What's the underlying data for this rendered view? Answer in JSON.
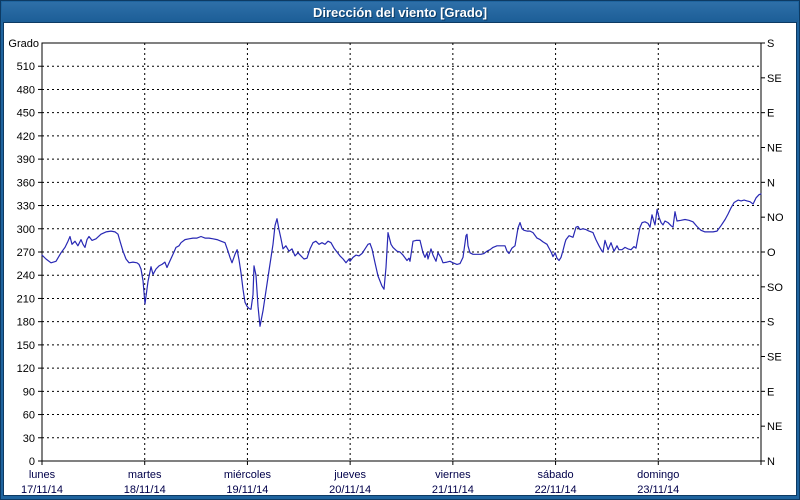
{
  "window": {
    "title": "Dirección del viento [Grado]"
  },
  "colors": {
    "titlebar": "#1f649e",
    "frame": "#1f649e",
    "series": "#2828b4",
    "grid": "#000000",
    "axis": "#000000",
    "tick_label": "#000000",
    "date_label": "#00004a",
    "plot_bg": "#ffffff"
  },
  "chart_data": {
    "type": "line",
    "title": "Dirección del viento [Grado]",
    "grid": {
      "style": "dashed",
      "h_step_deg": 30,
      "v_step_days": 1
    },
    "legend": "none",
    "y_left": {
      "title": "Grado",
      "min": 0,
      "max": 540,
      "tick_step": 30,
      "tick_labels": [
        0,
        30,
        60,
        90,
        120,
        150,
        180,
        210,
        240,
        270,
        300,
        330,
        360,
        390,
        420,
        450,
        480,
        510
      ]
    },
    "y_right": {
      "tick_step": 45,
      "ticks": [
        {
          "value": 0,
          "label": "N"
        },
        {
          "value": 45,
          "label": "NE"
        },
        {
          "value": 90,
          "label": "E"
        },
        {
          "value": 135,
          "label": "SE"
        },
        {
          "value": 180,
          "label": "S"
        },
        {
          "value": 225,
          "label": "SO"
        },
        {
          "value": 270,
          "label": "O"
        },
        {
          "value": 315,
          "label": "NO"
        },
        {
          "value": 360,
          "label": "N"
        },
        {
          "value": 405,
          "label": "NE"
        },
        {
          "value": 450,
          "label": "E"
        },
        {
          "value": 495,
          "label": "SE"
        },
        {
          "value": 540,
          "label": "S"
        }
      ]
    },
    "x_axis": {
      "unit": "days",
      "range_days": 7,
      "days": [
        {
          "name": "lunes",
          "date": "17/11/14"
        },
        {
          "name": "martes",
          "date": "18/11/14"
        },
        {
          "name": "miércoles",
          "date": "19/11/14"
        },
        {
          "name": "jueves",
          "date": "20/11/14"
        },
        {
          "name": "viernes",
          "date": "21/11/14"
        },
        {
          "name": "sábado",
          "date": "22/11/14"
        },
        {
          "name": "domingo",
          "date": "23/11/14"
        }
      ],
      "right_end_label": "N"
    },
    "series": [
      {
        "name": "Dirección del viento",
        "unit": "Grado",
        "points": [
          [
            0,
            266
          ],
          [
            0.039,
            261
          ],
          [
            0.088,
            256
          ],
          [
            0.136,
            258
          ],
          [
            0.185,
            269
          ],
          [
            0.224,
            276
          ],
          [
            0.253,
            284
          ],
          [
            0.273,
            290
          ],
          [
            0.292,
            280
          ],
          [
            0.321,
            284
          ],
          [
            0.35,
            278
          ],
          [
            0.38,
            286
          ],
          [
            0.399,
            280
          ],
          [
            0.419,
            276
          ],
          [
            0.438,
            286
          ],
          [
            0.458,
            290
          ],
          [
            0.487,
            285
          ],
          [
            0.526,
            287
          ],
          [
            0.574,
            293
          ],
          [
            0.623,
            296
          ],
          [
            0.672,
            297
          ],
          [
            0.711,
            296
          ],
          [
            0.74,
            293
          ],
          [
            0.759,
            284
          ],
          [
            0.789,
            271
          ],
          [
            0.818,
            261
          ],
          [
            0.847,
            256
          ],
          [
            0.886,
            257
          ],
          [
            0.925,
            256
          ],
          [
            0.944,
            254
          ],
          [
            0.964,
            248
          ],
          [
            0.983,
            233
          ],
          [
            1.003,
            203
          ],
          [
            1.032,
            232
          ],
          [
            1.061,
            251
          ],
          [
            1.081,
            241
          ],
          [
            1.11,
            248
          ],
          [
            1.139,
            252
          ],
          [
            1.168,
            254
          ],
          [
            1.197,
            257
          ],
          [
            1.217,
            250
          ],
          [
            1.237,
            256
          ],
          [
            1.275,
            267
          ],
          [
            1.305,
            276
          ],
          [
            1.334,
            278
          ],
          [
            1.353,
            282
          ],
          [
            1.392,
            286
          ],
          [
            1.431,
            287
          ],
          [
            1.47,
            288
          ],
          [
            1.509,
            288
          ],
          [
            1.548,
            290
          ],
          [
            1.587,
            288
          ],
          [
            1.626,
            288
          ],
          [
            1.665,
            287
          ],
          [
            1.704,
            286
          ],
          [
            1.743,
            284
          ],
          [
            1.782,
            282
          ],
          [
            1.811,
            271
          ],
          [
            1.83,
            263
          ],
          [
            1.85,
            256
          ],
          [
            1.879,
            267
          ],
          [
            1.899,
            273
          ],
          [
            1.918,
            260
          ],
          [
            1.937,
            243
          ],
          [
            1.957,
            222
          ],
          [
            1.976,
            205
          ],
          [
            1.996,
            200
          ],
          [
            2.015,
            197
          ],
          [
            2.035,
            196
          ],
          [
            2.054,
            215
          ],
          [
            2.064,
            252
          ],
          [
            2.083,
            240
          ],
          [
            2.103,
            200
          ],
          [
            2.122,
            174
          ],
          [
            2.152,
            194
          ],
          [
            2.181,
            220
          ],
          [
            2.21,
            246
          ],
          [
            2.249,
            280
          ],
          [
            2.268,
            304
          ],
          [
            2.288,
            313
          ],
          [
            2.307,
            299
          ],
          [
            2.327,
            287
          ],
          [
            2.346,
            274
          ],
          [
            2.375,
            278
          ],
          [
            2.405,
            271
          ],
          [
            2.434,
            274
          ],
          [
            2.463,
            265
          ],
          [
            2.492,
            269
          ],
          [
            2.522,
            265
          ],
          [
            2.551,
            261
          ],
          [
            2.58,
            262
          ],
          [
            2.609,
            274
          ],
          [
            2.638,
            282
          ],
          [
            2.667,
            284
          ],
          [
            2.697,
            280
          ],
          [
            2.726,
            282
          ],
          [
            2.755,
            280
          ],
          [
            2.784,
            284
          ],
          [
            2.814,
            282
          ],
          [
            2.843,
            275
          ],
          [
            2.872,
            270
          ],
          [
            2.901,
            265
          ],
          [
            2.931,
            261
          ],
          [
            2.96,
            256
          ],
          [
            2.989,
            261
          ],
          [
            2.999,
            258
          ],
          [
            3.028,
            263
          ],
          [
            3.057,
            266
          ],
          [
            3.086,
            265
          ],
          [
            3.115,
            268
          ],
          [
            3.145,
            274
          ],
          [
            3.174,
            280
          ],
          [
            3.193,
            281
          ],
          [
            3.213,
            274
          ],
          [
            3.242,
            256
          ],
          [
            3.271,
            239
          ],
          [
            3.31,
            226
          ],
          [
            3.33,
            222
          ],
          [
            3.349,
            250
          ],
          [
            3.369,
            295
          ],
          [
            3.398,
            280
          ],
          [
            3.417,
            276
          ],
          [
            3.456,
            271
          ],
          [
            3.485,
            270
          ],
          [
            3.515,
            266
          ],
          [
            3.554,
            259
          ],
          [
            3.573,
            262
          ],
          [
            3.583,
            258
          ],
          [
            3.612,
            284
          ],
          [
            3.641,
            285
          ],
          [
            3.68,
            285
          ],
          [
            3.709,
            269
          ],
          [
            3.729,
            263
          ],
          [
            3.748,
            269
          ],
          [
            3.758,
            261
          ],
          [
            3.787,
            274
          ],
          [
            3.807,
            266
          ],
          [
            3.836,
            258
          ],
          [
            3.855,
            269
          ],
          [
            3.884,
            263
          ],
          [
            3.904,
            256
          ],
          [
            3.943,
            257
          ],
          [
            3.972,
            258
          ],
          [
            4.001,
            256
          ],
          [
            4.04,
            254
          ],
          [
            4.07,
            255
          ],
          [
            4.099,
            263
          ],
          [
            4.128,
            291
          ],
          [
            4.138,
            293
          ],
          [
            4.147,
            278
          ],
          [
            4.167,
            269
          ],
          [
            4.196,
            267
          ],
          [
            4.235,
            267
          ],
          [
            4.274,
            267
          ],
          [
            4.303,
            268
          ],
          [
            4.332,
            271
          ],
          [
            4.362,
            273
          ],
          [
            4.391,
            276
          ],
          [
            4.43,
            278
          ],
          [
            4.469,
            278
          ],
          [
            4.508,
            278
          ],
          [
            4.527,
            271
          ],
          [
            4.547,
            268
          ],
          [
            4.576,
            275
          ],
          [
            4.605,
            278
          ],
          [
            4.634,
            301
          ],
          [
            4.654,
            308
          ],
          [
            4.673,
            300
          ],
          [
            4.693,
            298
          ],
          [
            4.722,
            297
          ],
          [
            4.751,
            297
          ],
          [
            4.78,
            295
          ],
          [
            4.819,
            288
          ],
          [
            4.849,
            286
          ],
          [
            4.878,
            283
          ],
          [
            4.917,
            280
          ],
          [
            4.936,
            275
          ],
          [
            4.956,
            270
          ],
          [
            4.975,
            264
          ],
          [
            4.995,
            269
          ],
          [
            5.014,
            262
          ],
          [
            5.033,
            259
          ],
          [
            5.053,
            263
          ],
          [
            5.072,
            272
          ],
          [
            5.092,
            282
          ],
          [
            5.102,
            286
          ],
          [
            5.131,
            291
          ],
          [
            5.17,
            289
          ],
          [
            5.199,
            302
          ],
          [
            5.218,
            303
          ],
          [
            5.238,
            299
          ],
          [
            5.267,
            300
          ],
          [
            5.296,
            299
          ],
          [
            5.325,
            297
          ],
          [
            5.364,
            295
          ],
          [
            5.393,
            286
          ],
          [
            5.423,
            278
          ],
          [
            5.452,
            271
          ],
          [
            5.462,
            270
          ],
          [
            5.481,
            285
          ],
          [
            5.511,
            273
          ],
          [
            5.54,
            282
          ],
          [
            5.569,
            271
          ],
          [
            5.598,
            278
          ],
          [
            5.617,
            273
          ],
          [
            5.647,
            273
          ],
          [
            5.676,
            276
          ],
          [
            5.705,
            274
          ],
          [
            5.734,
            273
          ],
          [
            5.764,
            277
          ],
          [
            5.783,
            275
          ],
          [
            5.803,
            290
          ],
          [
            5.822,
            302
          ],
          [
            5.842,
            308
          ],
          [
            5.871,
            309
          ],
          [
            5.9,
            307
          ],
          [
            5.919,
            302
          ],
          [
            5.939,
            318
          ],
          [
            5.958,
            309
          ],
          [
            5.968,
            305
          ],
          [
            5.988,
            325
          ],
          [
            6.007,
            315
          ],
          [
            6.027,
            308
          ],
          [
            6.046,
            305
          ],
          [
            6.065,
            310
          ],
          [
            6.095,
            308
          ],
          [
            6.124,
            304
          ],
          [
            6.143,
            302
          ],
          [
            6.163,
            322
          ],
          [
            6.182,
            310
          ],
          [
            6.221,
            311
          ],
          [
            6.26,
            312
          ],
          [
            6.299,
            311
          ],
          [
            6.338,
            309
          ],
          [
            6.377,
            303
          ],
          [
            6.416,
            298
          ],
          [
            6.455,
            296
          ],
          [
            6.494,
            296
          ],
          [
            6.533,
            296
          ],
          [
            6.572,
            297
          ],
          [
            6.611,
            304
          ],
          [
            6.65,
            312
          ],
          [
            6.679,
            319
          ],
          [
            6.708,
            327
          ],
          [
            6.738,
            334
          ],
          [
            6.777,
            337
          ],
          [
            6.806,
            336
          ],
          [
            6.835,
            337
          ],
          [
            6.864,
            336
          ],
          [
            6.893,
            335
          ],
          [
            6.923,
            332
          ],
          [
            6.952,
            340
          ],
          [
            6.981,
            344
          ],
          [
            7,
            345
          ]
        ]
      }
    ]
  }
}
